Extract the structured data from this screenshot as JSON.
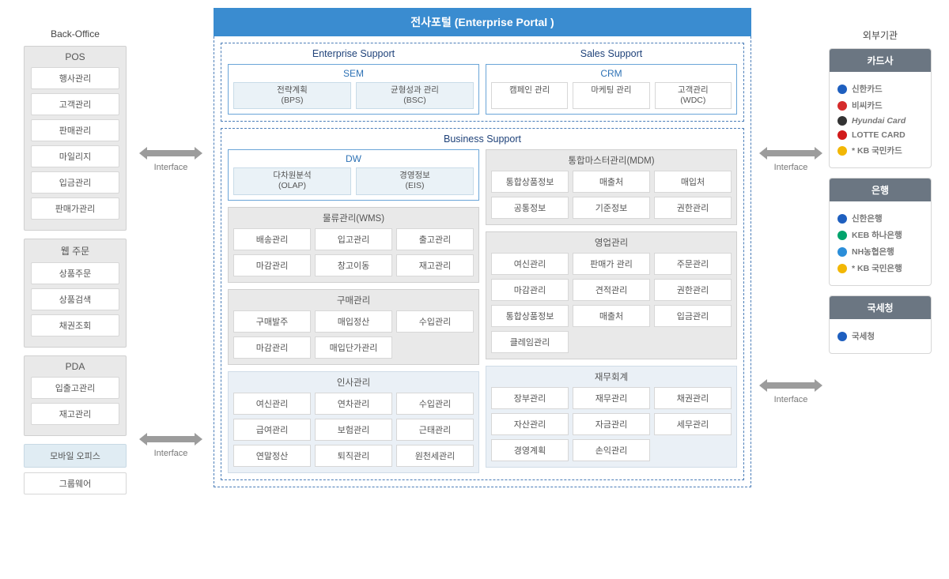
{
  "colors": {
    "portalHeader": "#3a8cd0",
    "dashBorder": "#4a7db8",
    "greyPanel": "#e9e9e9",
    "tintCell": "#eaf2f7",
    "lightPanel": "#eaf0f6",
    "cardHead": "#6b7682",
    "arrow": "#9c9c9c"
  },
  "interface_label": "Interface",
  "left": {
    "title": "Back-Office",
    "pos": {
      "title": "POS",
      "items": [
        "행사관리",
        "고객관리",
        "판매관리",
        "마일리지",
        "입금관리",
        "판매가관리"
      ]
    },
    "web": {
      "title": "웹 주문",
      "items": [
        "상품주문",
        "상품검색",
        "채권조회"
      ]
    },
    "pda": {
      "title": "PDA",
      "items": [
        "입출고관리",
        "재고관리"
      ]
    },
    "mobile": "모바일 오피스",
    "groupware": "그룹웨어"
  },
  "portal": {
    "title": "전사포털 (Enterprise Portal )",
    "enterpriseSupport": {
      "title": "Enterprise Support",
      "sem": {
        "title": "SEM",
        "items": [
          {
            "l1": "전략계획",
            "l2": "(BPS)"
          },
          {
            "l1": "균형성과 관리",
            "l2": "(BSC)"
          }
        ]
      }
    },
    "salesSupport": {
      "title": "Sales Support",
      "crm": {
        "title": "CRM",
        "items": [
          {
            "l1": "캠페인 관리"
          },
          {
            "l1": "마케팅 관리"
          },
          {
            "l1": "고객관리",
            "l2": "(WDC)"
          }
        ]
      }
    },
    "businessSupport": {
      "title": "Business Support",
      "dw": {
        "title": "DW",
        "items": [
          {
            "l1": "다차원분석",
            "l2": "(OLAP)"
          },
          {
            "l1": "경영정보",
            "l2": "(EIS)"
          }
        ]
      },
      "mdm": {
        "title": "통합마스터관리(MDM)",
        "items": [
          "통합상품정보",
          "매출처",
          "매입처",
          "공통정보",
          "기준정보",
          "권한관리"
        ]
      },
      "wms": {
        "title": "물류관리(WMS)",
        "items": [
          "배송관리",
          "입고관리",
          "출고관리",
          "마감관리",
          "창고이동",
          "재고관리"
        ]
      },
      "sales": {
        "title": "영업관리",
        "items": [
          "여신관리",
          "판매가 관리",
          "주문관리",
          "마감관리",
          "견적관리",
          "권한관리",
          "통합상품정보",
          "매출처",
          "입금관리",
          "클레임관리"
        ]
      },
      "purchase": {
        "title": "구매관리",
        "items": [
          "구매발주",
          "매입정산",
          "수입관리",
          "마감관리",
          "매입단가관리"
        ]
      },
      "hr": {
        "title": "인사관리",
        "items": [
          "여신관리",
          "연차관리",
          "수입관리",
          "급여관리",
          "보험관리",
          "근태관리",
          "연말정산",
          "퇴직관리",
          "원천세관리"
        ]
      },
      "fi": {
        "title": "재무회계",
        "items": [
          "장부관리",
          "재무관리",
          "채권관리",
          "자산관리",
          "자금관리",
          "세무관리",
          "경영계획",
          "손익관리"
        ]
      }
    }
  },
  "right": {
    "title": "외부기관",
    "card1": {
      "title": "카드사",
      "items": [
        {
          "color": "#1e5fbf",
          "text": "신한카드"
        },
        {
          "color": "#d52b2b",
          "text": "비씨카드"
        },
        {
          "color": "#333333",
          "text": "Hyundai Card",
          "italic": true
        },
        {
          "color": "#d11a1a",
          "text": "LOTTE CARD",
          "bold": true
        },
        {
          "color": "#f2b705",
          "text": "KB 국민카드",
          "prefix": "*"
        }
      ]
    },
    "card2": {
      "title": "은행",
      "items": [
        {
          "color": "#1e5fbf",
          "text": "신한은행"
        },
        {
          "color": "#00a36c",
          "text": "KEB 하나은행",
          "bold": true
        },
        {
          "color": "#2b8ed9",
          "text": "NH농협은행",
          "bold": true
        },
        {
          "color": "#f2b705",
          "text": "KB 국민은행",
          "prefix": "*"
        }
      ]
    },
    "card3": {
      "title": "국세청",
      "items": [
        {
          "color": "#1e5fbf",
          "text": "국세청"
        }
      ]
    }
  }
}
